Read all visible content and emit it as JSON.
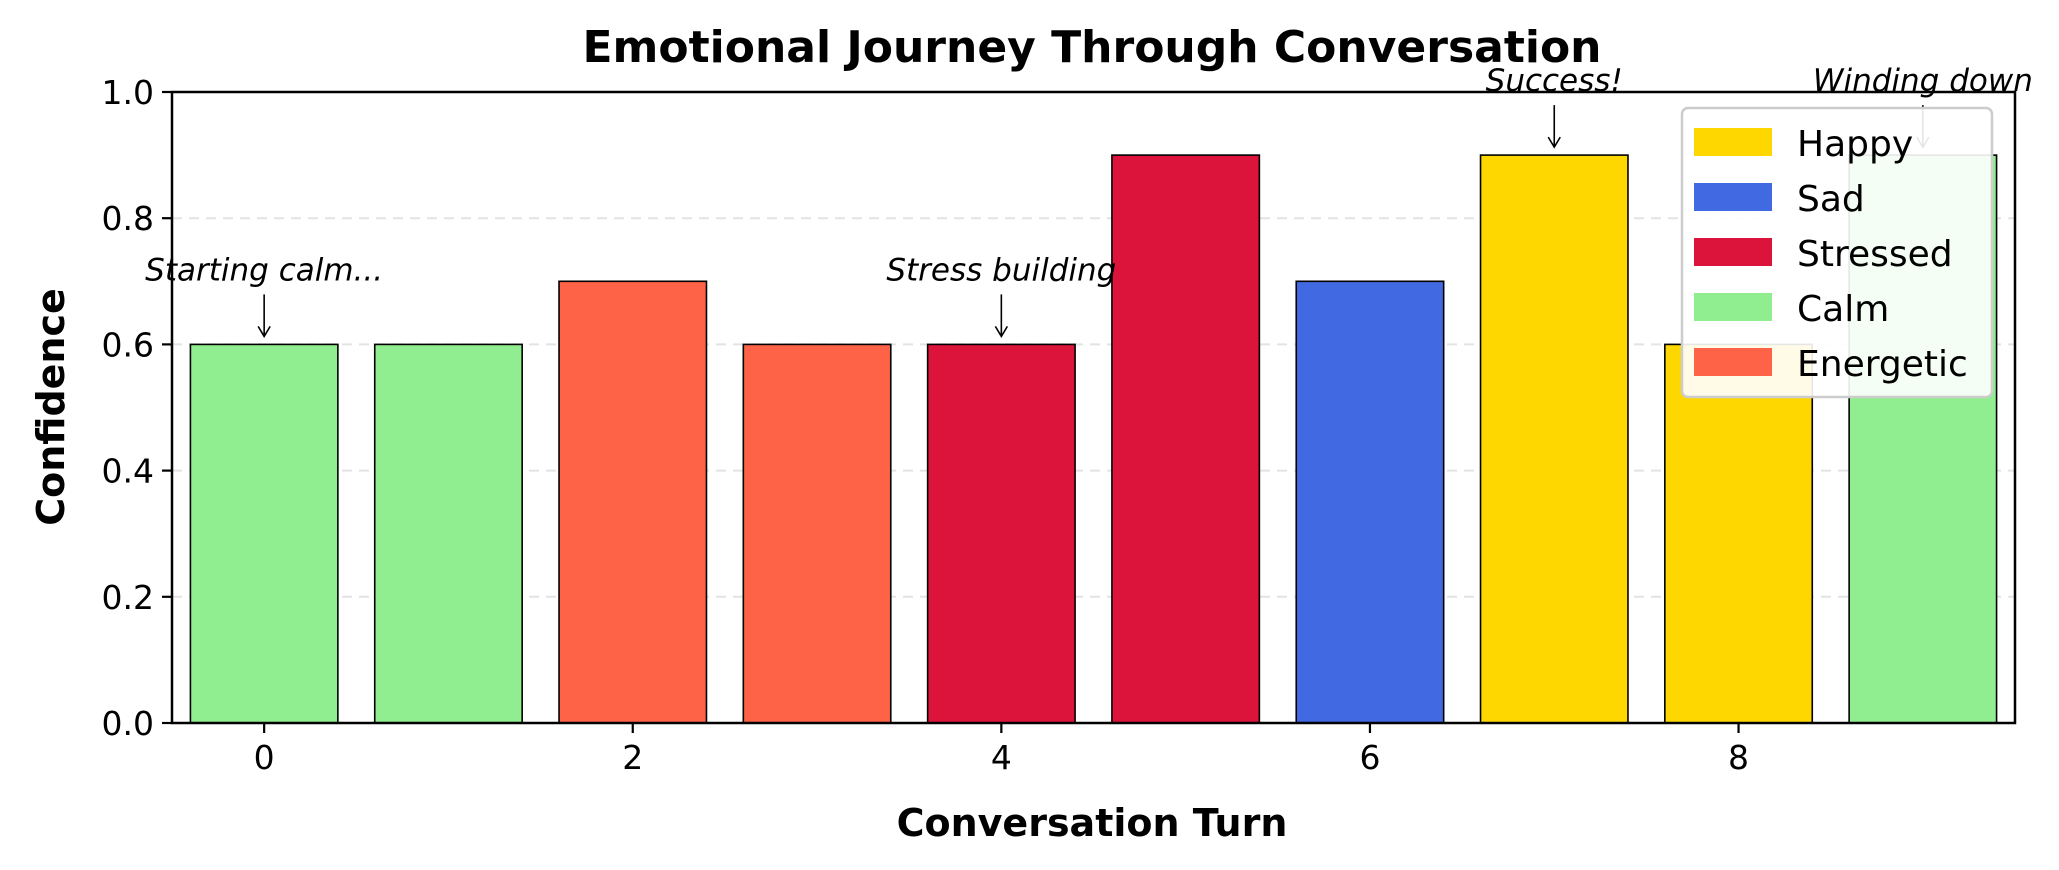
{
  "chart_data": {
    "type": "bar",
    "title": "Emotional Journey Through Conversation",
    "xlabel": "Conversation Turn",
    "ylabel": "Confidence",
    "x": [
      0,
      1,
      2,
      3,
      4,
      5,
      6,
      7,
      8,
      9
    ],
    "values": [
      0.6,
      0.6,
      0.7,
      0.6,
      0.6,
      0.9,
      0.7,
      0.9,
      0.6,
      0.9
    ],
    "emotions": [
      "Calm",
      "Calm",
      "Energetic",
      "Energetic",
      "Stressed",
      "Stressed",
      "Sad",
      "Happy",
      "Happy",
      "Calm"
    ],
    "xlim": [
      -0.5,
      9.5
    ],
    "ylim": [
      0,
      1.0
    ],
    "xticks": [
      "0",
      "2",
      "4",
      "6",
      "8"
    ],
    "xtick_values": [
      0,
      2,
      4,
      6,
      8
    ],
    "yticks": [
      "0.0",
      "0.2",
      "0.4",
      "0.6",
      "0.8",
      "1.0"
    ],
    "ytick_values": [
      0,
      0.2,
      0.4,
      0.6,
      0.8,
      1.0
    ],
    "grid": "y-dashed",
    "legend_position": "top-right",
    "legend": [
      {
        "label": "Happy",
        "color": "#ffd700"
      },
      {
        "label": "Sad",
        "color": "#4169e1"
      },
      {
        "label": "Stressed",
        "color": "#dc143c"
      },
      {
        "label": "Calm",
        "color": "#90ee90"
      },
      {
        "label": "Energetic",
        "color": "#ff6347"
      }
    ],
    "annotations": [
      {
        "text": "Starting calm...",
        "x": 0,
        "y": 0.6,
        "arrow": true
      },
      {
        "text": "Stress building",
        "x": 4,
        "y": 0.6,
        "arrow": true
      },
      {
        "text": "Success!",
        "x": 7,
        "y": 0.9,
        "arrow": true
      },
      {
        "text": "Winding down",
        "x": 9,
        "y": 0.9,
        "arrow": true
      }
    ]
  }
}
